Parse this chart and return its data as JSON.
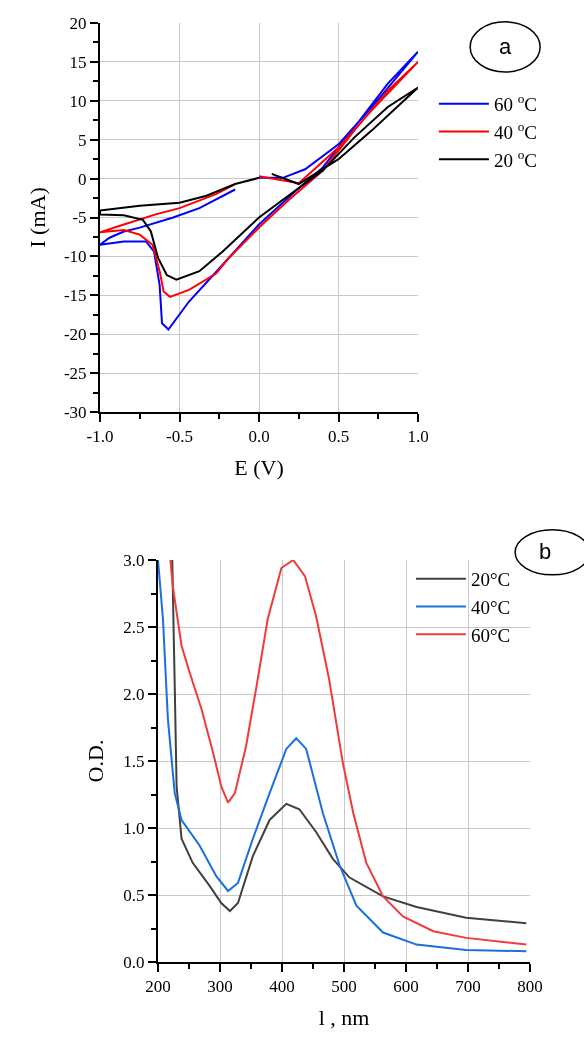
{
  "chart_data": [
    {
      "type": "line",
      "xlabel": "E (V)",
      "ylabel": "I (mA)",
      "annotations": [
        "a"
      ],
      "legend": "right",
      "grid": true,
      "xlim": [
        -1,
        1
      ],
      "xticks": [
        {
          "value": -1,
          "label": "-1.0"
        },
        {
          "value": -0.5,
          "label": "-0.5"
        },
        {
          "value": 0,
          "label": "0.0"
        },
        {
          "value": 0.5,
          "label": "0.5"
        },
        {
          "value": 1,
          "label": "1.0"
        }
      ],
      "ylim": [
        -30,
        20
      ],
      "yticks": [
        -30,
        -25,
        -20,
        -15,
        -10,
        -5,
        0,
        5,
        10,
        15,
        20
      ],
      "series": [
        {
          "name": "60 $^{o}$C",
          "color": "#0000ff",
          "x": [
            0,
            0.15,
            0.29,
            0.5,
            0.71,
            1.0,
            0.81,
            0.6,
            0.4,
            0.23,
            0,
            -0.23,
            -0.44,
            -0.57,
            -0.61,
            -0.625,
            -0.66,
            -0.71,
            -0.85,
            -1.0,
            -0.94,
            -0.85,
            -0.75,
            -0.54,
            -0.375,
            -0.15
          ],
          "values": [
            0.1,
            0.1,
            1.2,
            4.4,
            9.2,
            16.3,
            12.2,
            6.6,
            1.4,
            -1.6,
            -5.9,
            -11.1,
            -15.8,
            -19.4,
            -18.6,
            -13.7,
            -9.4,
            -8.1,
            -8.1,
            -8.5,
            -7.6,
            -6.8,
            -6.3,
            -5.0,
            -3.8,
            -1.4
          ]
        },
        {
          "name": "40 $^{o}$C",
          "color": "#ff0000",
          "x": [
            0,
            0.25,
            0.5,
            0.71,
            1.0,
            0.81,
            0.6,
            0.4,
            0.19,
            0.02,
            -0.19,
            -0.27,
            -0.44,
            -0.56,
            -0.6,
            -0.625,
            -0.67,
            -0.75,
            -0.85,
            -1.0,
            -0.85,
            -0.65,
            -0.5,
            -0.27,
            -0.15
          ],
          "values": [
            0.3,
            -0.6,
            4.0,
            8.8,
            15.0,
            11.3,
            6.2,
            1.0,
            -2.7,
            -5.9,
            -10.2,
            -12.2,
            -14.3,
            -15.2,
            -14.5,
            -11.9,
            -8.5,
            -7.2,
            -6.6,
            -6.9,
            -5.9,
            -4.6,
            -3.8,
            -2.0,
            -0.7
          ]
        },
        {
          "name": "20 $^{o}$C",
          "color": "#000000",
          "x": [
            0.08,
            0.25,
            0.5,
            0.71,
            1.0,
            0.81,
            0.6,
            0.4,
            0.25,
            0,
            -0.23,
            -0.375,
            -0.52,
            -0.58,
            -0.635,
            -0.68,
            -0.73,
            -0.85,
            -1.0,
            -1.0,
            -0.75,
            -0.5,
            -0.33,
            -0.15,
            0
          ],
          "values": [
            0.6,
            -0.7,
            2.5,
            6.2,
            11.7,
            9.2,
            5.3,
            1.0,
            -1.2,
            -5.0,
            -9.4,
            -11.9,
            -13.0,
            -12.4,
            -10.2,
            -6.8,
            -5.3,
            -4.7,
            -4.6,
            -4.1,
            -3.5,
            -3.1,
            -2.2,
            -0.7,
            0.1
          ]
        }
      ]
    },
    {
      "type": "line",
      "xlabel": "l , nm",
      "ylabel": "O.D.",
      "annotations": [
        "b"
      ],
      "legend": "top right",
      "grid": true,
      "xlim": [
        200,
        800
      ],
      "xticks": [
        200,
        300,
        400,
        500,
        600,
        700,
        800
      ],
      "ylim": [
        0,
        3
      ],
      "yticks": [
        {
          "value": 0,
          "label": "0.0"
        },
        0.5,
        {
          "value": 1,
          "label": "1.0"
        },
        1.5,
        {
          "value": 2,
          "label": "2.0"
        },
        2.5,
        {
          "value": 3,
          "label": "3.0"
        }
      ],
      "series": [
        {
          "name": "20°C",
          "color": "#404040",
          "x": [
            223,
            227,
            230,
            238,
            256,
            283,
            302,
            316,
            329,
            353,
            380,
            407,
            428,
            455,
            482,
            509,
            563,
            617,
            697,
            794
          ],
          "values": [
            3.0,
            2.06,
            1.31,
            0.92,
            0.74,
            0.57,
            0.44,
            0.38,
            0.44,
            0.79,
            1.06,
            1.18,
            1.14,
            0.97,
            0.77,
            0.63,
            0.49,
            0.41,
            0.33,
            0.29
          ]
        },
        {
          "name": "40°C",
          "color": "#1a6fdf",
          "x": [
            200,
            208,
            216,
            227,
            238,
            267,
            294,
            313,
            329,
            353,
            380,
            407,
            423,
            439,
            466,
            493,
            520,
            563,
            617,
            697,
            794
          ],
          "values": [
            3.0,
            2.56,
            1.81,
            1.26,
            1.06,
            0.87,
            0.64,
            0.53,
            0.59,
            0.92,
            1.26,
            1.59,
            1.67,
            1.59,
            1.11,
            0.72,
            0.42,
            0.22,
            0.13,
            0.09,
            0.08
          ]
        },
        {
          "name": "60°C",
          "color": "#ef3b3b",
          "x": [
            220,
            224,
            238,
            251,
            270,
            289,
            302,
            313,
            324,
            342,
            359,
            377,
            399,
            418,
            437,
            455,
            476,
            498,
            515,
            536,
            563,
            595,
            644,
            697,
            794
          ],
          "values": [
            3.0,
            2.8,
            2.36,
            2.16,
            1.89,
            1.56,
            1.31,
            1.19,
            1.26,
            1.61,
            2.06,
            2.56,
            2.94,
            3.0,
            2.88,
            2.58,
            2.11,
            1.49,
            1.11,
            0.74,
            0.49,
            0.34,
            0.23,
            0.18,
            0.13
          ]
        }
      ]
    }
  ]
}
